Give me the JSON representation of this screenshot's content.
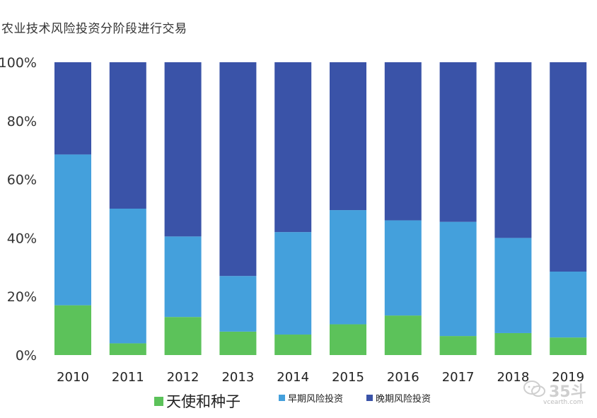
{
  "title": "农业技术风险投资分阶段进行交易",
  "chart_data": {
    "type": "bar",
    "stacked": true,
    "title": "农业技术风险投资分阶段进行交易",
    "categories": [
      "2010",
      "2011",
      "2012",
      "2013",
      "2014",
      "2015",
      "2016",
      "2017",
      "2018",
      "2019"
    ],
    "series": [
      {
        "name": "天使和种子",
        "color": "#5cc25a",
        "values": [
          17,
          4,
          13,
          8,
          7,
          10.5,
          13.5,
          6.5,
          7.5,
          6
        ]
      },
      {
        "name": "早期风险投资",
        "color": "#44a0dc",
        "values": [
          51.5,
          46,
          27.5,
          19,
          35,
          39,
          32.5,
          39,
          32.5,
          22.5
        ]
      },
      {
        "name": "晚期风险投资",
        "color": "#3a53a8",
        "values": [
          31.5,
          50,
          59.5,
          73,
          58,
          50.5,
          54,
          54.5,
          60,
          71.5
        ]
      }
    ],
    "yticks": [
      "0%",
      "20%",
      "40%",
      "60%",
      "80%",
      "100%"
    ],
    "ylim": [
      0,
      100
    ],
    "legend_position": "bottom",
    "grid": false
  },
  "watermark": {
    "text": "35斗",
    "url": "vcearth.com"
  }
}
